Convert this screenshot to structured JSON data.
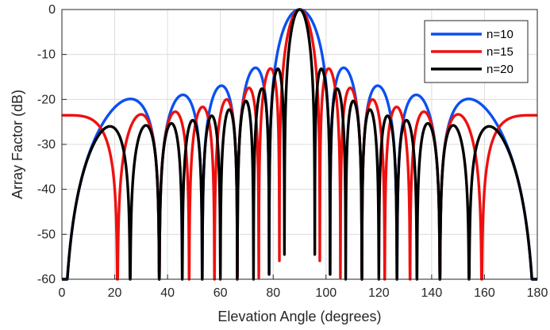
{
  "chart_data": {
    "type": "line",
    "title": "",
    "xlabel": "Elevation Angle (degrees)",
    "ylabel": "Array Factor (dB)",
    "xlim": [
      0,
      180
    ],
    "ylim": [
      -60,
      0
    ],
    "xticks": [
      0,
      20,
      40,
      60,
      80,
      100,
      120,
      140,
      160,
      180
    ],
    "yticks": [
      0,
      -10,
      -20,
      -30,
      -40,
      -50,
      -60
    ],
    "grid": true,
    "legend_position": "top-right",
    "floor_db": -60,
    "series": [
      {
        "name": "n=10",
        "n": 10,
        "color": "#0a50f0"
      },
      {
        "name": "n=15",
        "n": 15,
        "color": "#ee1010"
      },
      {
        "name": "n=20",
        "n": 20,
        "color": "#000000"
      }
    ]
  }
}
